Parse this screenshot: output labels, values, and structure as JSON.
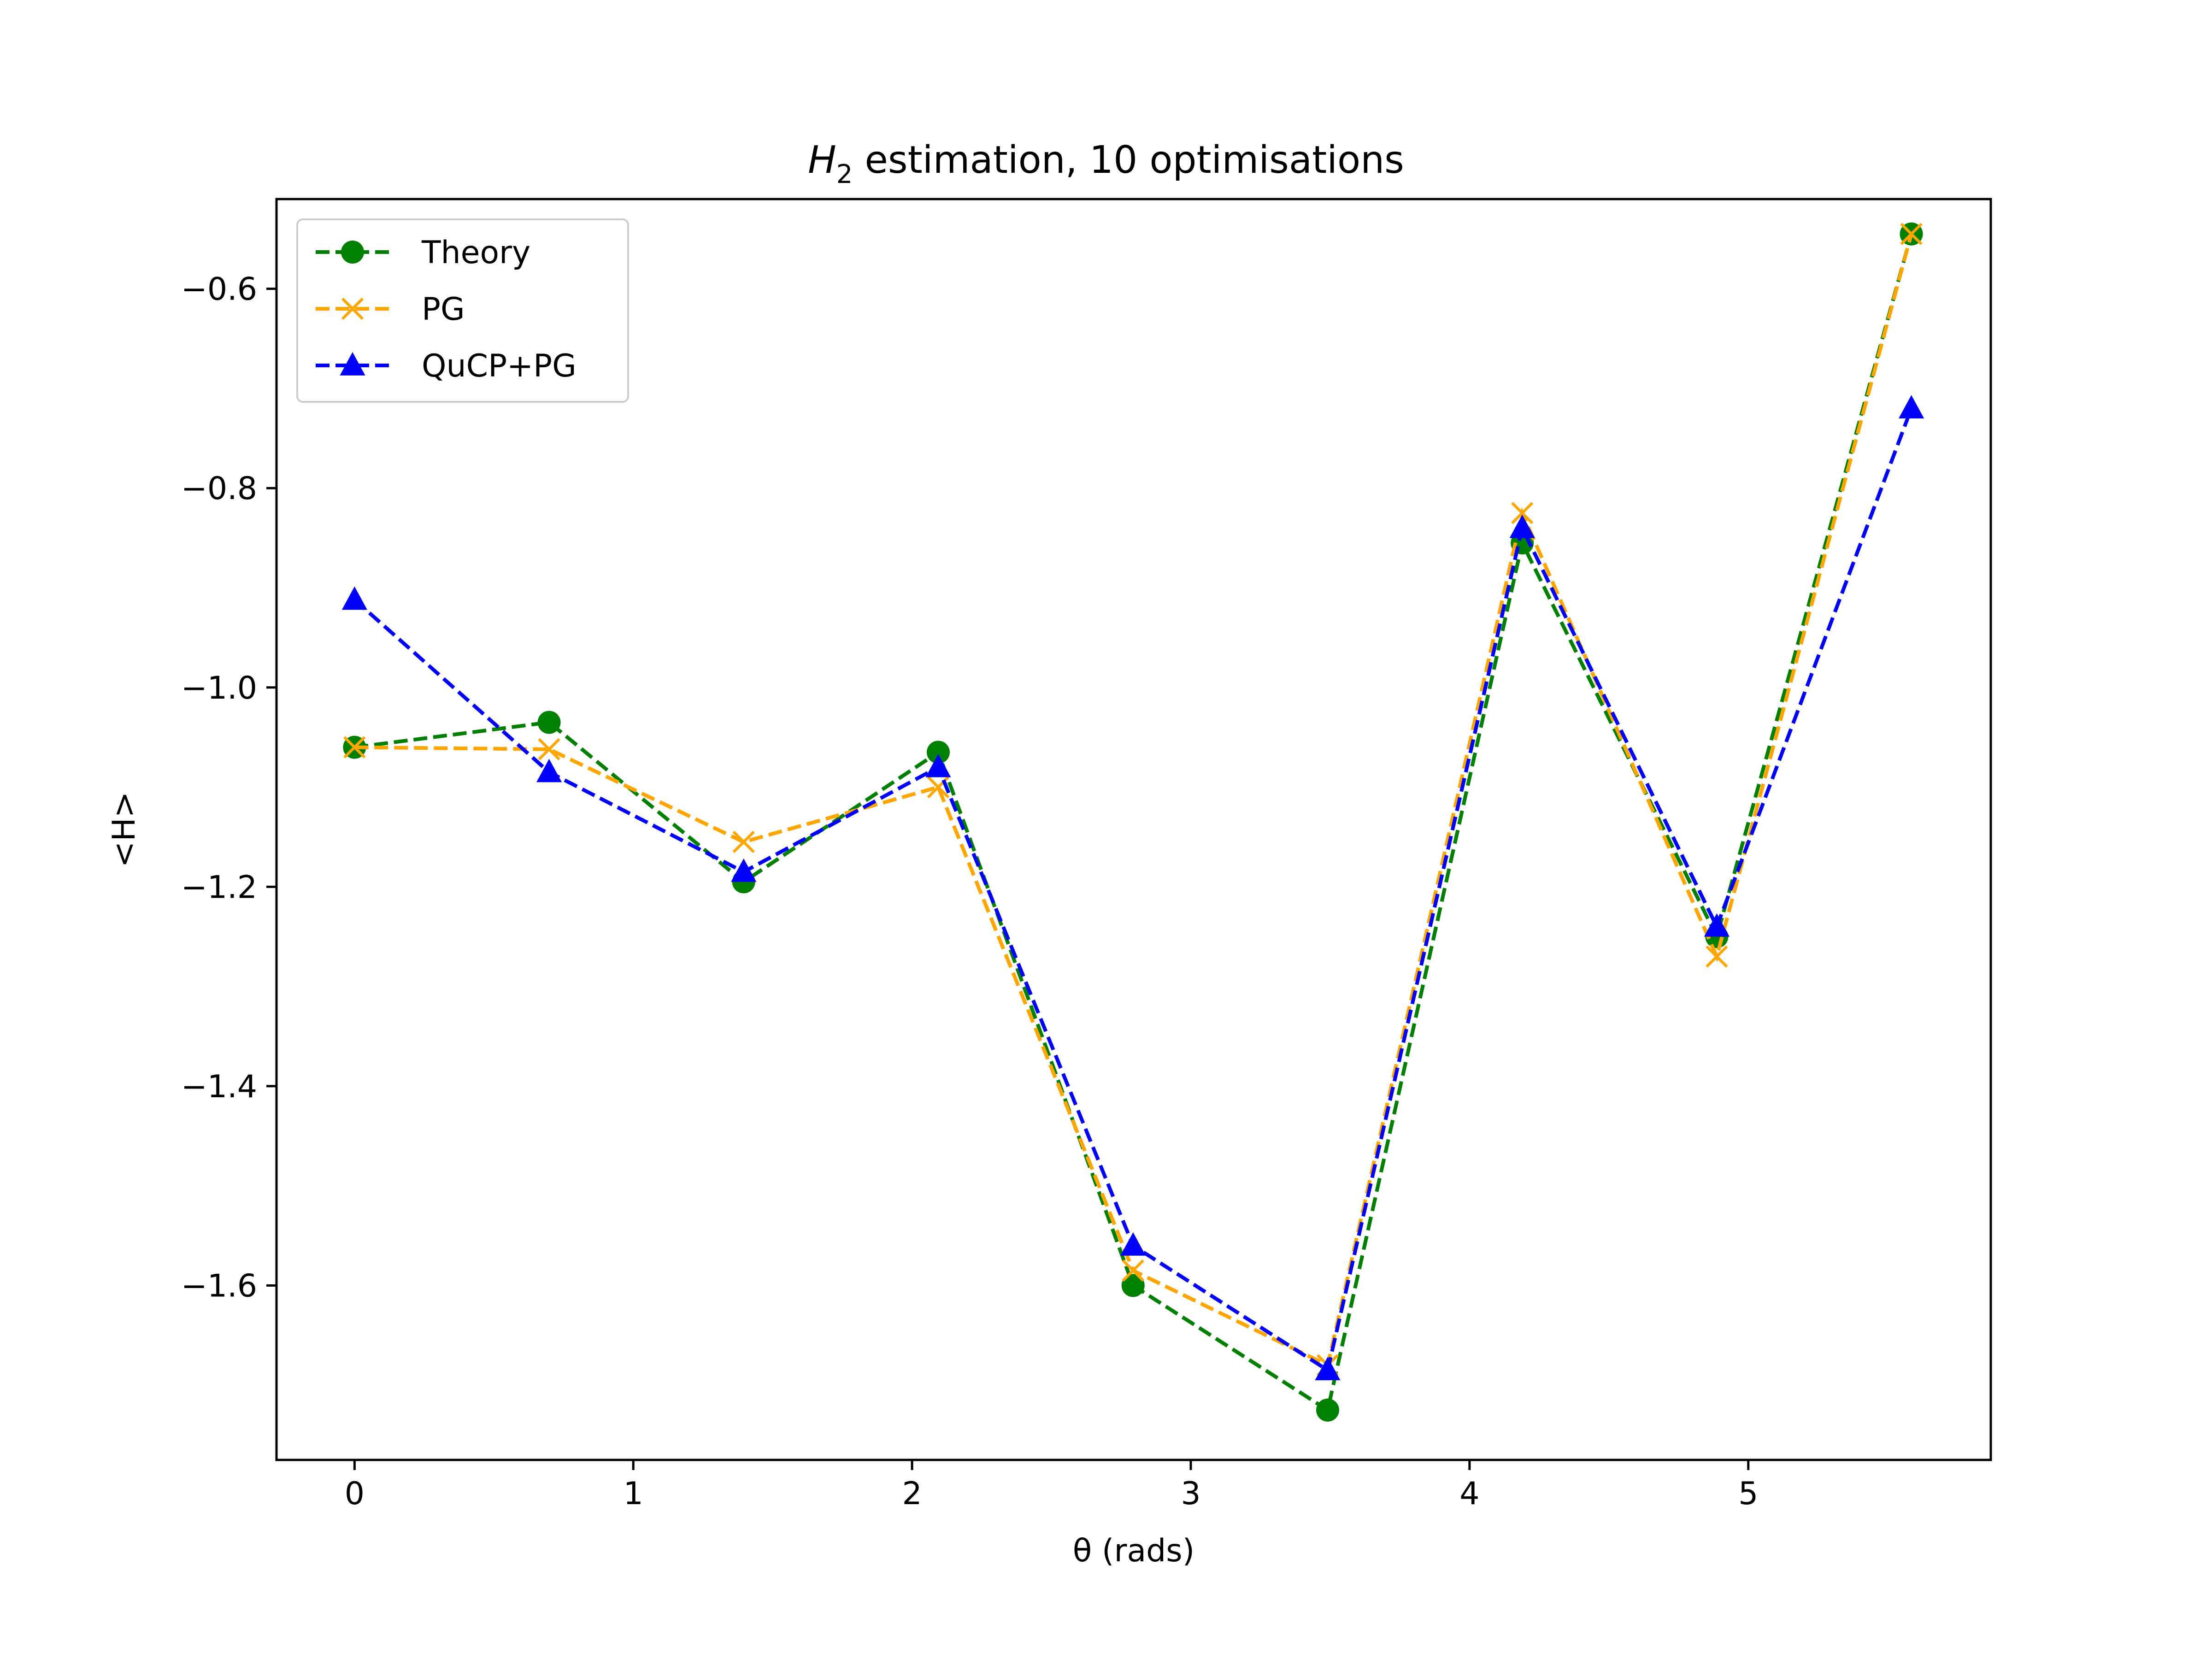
{
  "chart_data": {
    "type": "line",
    "title_main": "H",
    "title_sub": "2",
    "title_rest": " estimation, 10 optimisations",
    "xlabel": "θ (rads)",
    "ylabel": "<H>",
    "xlim": [
      -0.28,
      5.87
    ],
    "ylim": [
      -1.775,
      -0.51
    ],
    "xticks": [
      0,
      1,
      2,
      3,
      4,
      5
    ],
    "xtick_labels": [
      "0",
      "1",
      "2",
      "3",
      "4",
      "5"
    ],
    "yticks": [
      -0.6,
      -0.8,
      -1.0,
      -1.2,
      -1.4,
      -1.6
    ],
    "ytick_labels": [
      "−0.6",
      "−0.8",
      "−1.0",
      "−1.2",
      "−1.4",
      "−1.6"
    ],
    "grid": false,
    "legend_position": "upper-left",
    "x": [
      0,
      0.698,
      1.396,
      2.094,
      2.793,
      3.491,
      4.189,
      4.887,
      5.585
    ],
    "series": [
      {
        "name": "Theory",
        "color": "#008000",
        "marker": "circle",
        "values": [
          -1.06,
          -1.035,
          -1.195,
          -1.065,
          -1.6,
          -1.725,
          -0.855,
          -1.25,
          -0.545
        ]
      },
      {
        "name": "PG",
        "color": "#ffa500",
        "marker": "x",
        "values": [
          -1.06,
          -1.062,
          -1.155,
          -1.1,
          -1.585,
          -1.68,
          -0.825,
          -1.27,
          -0.545
        ]
      },
      {
        "name": "QuCP+PG",
        "color": "#0000ff",
        "marker": "triangle",
        "values": [
          -0.912,
          -1.085,
          -1.185,
          -1.08,
          -1.56,
          -1.685,
          -0.84,
          -1.24,
          -0.72
        ]
      }
    ]
  }
}
